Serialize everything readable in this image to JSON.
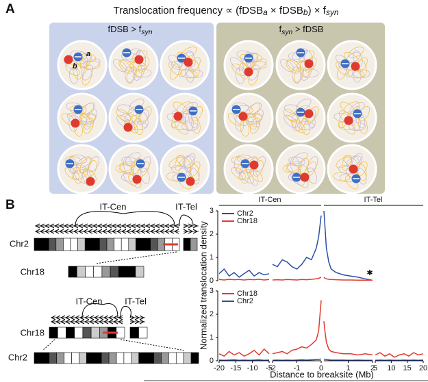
{
  "panel_a": {
    "label": "A",
    "title_parts": [
      "Translocation frequency ∝ (fDSB",
      "a",
      " × fDSB",
      "b",
      ") × f",
      "syn"
    ],
    "left_header_parts": [
      "fDSB > f",
      "syn"
    ],
    "right_header_parts": [
      "f",
      "syn",
      " > fDSB"
    ],
    "dot_labels": [
      "a",
      "b"
    ]
  },
  "panel_b": {
    "label": "B",
    "diagram_top": {
      "labels": [
        "IT-Cen",
        "IT-Tel"
      ],
      "chromosomes": [
        "Chr2",
        "Chr18"
      ]
    },
    "diagram_bottom": {
      "labels": [
        "IT-Cen",
        "IT-Tel"
      ],
      "chromosomes": [
        "Chr18",
        "Chr2"
      ]
    }
  },
  "chart_data": {
    "type": "line",
    "y_label": "Normalized translocation density",
    "x_label": "Distance to breaksite (Mb)",
    "headers": [
      "IT-Cen",
      "IT-Tel"
    ],
    "annotation": "✱",
    "ylim": [
      0,
      3
    ],
    "yticks": [
      0,
      1,
      2,
      3
    ],
    "x_segments": [
      {
        "xlim": [
          -20,
          -5
        ],
        "xticks": [
          -20,
          -15,
          -10,
          -5
        ]
      },
      {
        "xlim": [
          -2,
          0
        ],
        "xticks": [
          -2,
          -1,
          0
        ]
      },
      {
        "xlim": [
          0,
          2
        ],
        "xticks": [
          1,
          2
        ]
      },
      {
        "xlim": [
          5,
          20
        ],
        "xticks": [
          5,
          10,
          15,
          20
        ]
      }
    ],
    "panels": [
      {
        "series": [
          {
            "name": "Chr2",
            "color": "#2b4ea8"
          },
          {
            "name": "Chr18",
            "color": "#e03a2e"
          }
        ],
        "segments": [
          {
            "x": [
              -20,
              -18.5,
              -17,
              -15.5,
              -14,
              -12.5,
              -11,
              -9.5,
              -8,
              -6.5,
              -5
            ],
            "values": [
              [
                0.3,
                0.5,
                0.2,
                0.35,
                0.15,
                0.3,
                0.45,
                0.2,
                0.35,
                0.25,
                0.3
              ],
              [
                0.05,
                0.03,
                0.06,
                0.04,
                0.05,
                0.03,
                0.05,
                0.04,
                0.06,
                0.03,
                0.05
              ]
            ]
          },
          {
            "x": [
              -2,
              -1.8,
              -1.6,
              -1.4,
              -1.2,
              -1,
              -0.8,
              -0.6,
              -0.4,
              -0.2,
              -0.1,
              0
            ],
            "values": [
              [
                0.7,
                0.6,
                0.9,
                0.8,
                0.6,
                0.5,
                0.7,
                1.0,
                0.9,
                1.4,
                1.9,
                2.8
              ],
              [
                0.03,
                0.04,
                0.03,
                0.05,
                0.04,
                0.03,
                0.05,
                0.04,
                0.06,
                0.08,
                0.1,
                0.15
              ]
            ]
          },
          {
            "x": [
              0,
              0.05,
              0.1,
              0.2,
              0.3,
              0.5,
              0.8,
              1.1,
              1.4,
              1.7,
              2
            ],
            "values": [
              [
                3,
                2.2,
                1.4,
                0.8,
                0.5,
                0.35,
                0.25,
                0.2,
                0.15,
                0.08,
                0.02
              ],
              [
                0.15,
                0.1,
                0.08,
                0.06,
                0.05,
                0.04,
                0.03,
                0.03,
                0.02,
                0.02,
                0.02
              ]
            ]
          }
        ]
      },
      {
        "series": [
          {
            "name": "Chr18",
            "color": "#e03a2e"
          },
          {
            "name": "Chr2",
            "color": "#2b4ea8"
          }
        ],
        "segments": [
          {
            "x": [
              -20,
              -18.5,
              -17,
              -15.5,
              -14,
              -12.5,
              -11,
              -9.5,
              -8,
              -6.5,
              -5
            ],
            "values": [
              [
                0.3,
                0.2,
                0.4,
                0.25,
                0.35,
                0.2,
                0.3,
                0.45,
                0.25,
                0.5,
                0.3
              ],
              [
                0.03,
                0.02,
                0.03,
                0.04,
                0.02,
                0.03,
                0.02,
                0.03,
                0.04,
                0.02,
                0.03
              ]
            ]
          },
          {
            "x": [
              -2,
              -1.8,
              -1.6,
              -1.4,
              -1.2,
              -1,
              -0.8,
              -0.6,
              -0.4,
              -0.2,
              -0.1,
              0
            ],
            "values": [
              [
                0.3,
                0.35,
                0.4,
                0.3,
                0.45,
                0.5,
                0.6,
                0.55,
                0.7,
                0.9,
                1.3,
                2.6
              ],
              [
                0.02,
                0.03,
                0.02,
                0.03,
                0.02,
                0.03,
                0.04,
                0.03,
                0.04,
                0.05,
                0.06,
                0.08
              ]
            ]
          },
          {
            "x": [
              0,
              0.05,
              0.1,
              0.2,
              0.3,
              0.5,
              0.8,
              1.1,
              1.4,
              1.7,
              2
            ],
            "values": [
              [
                1.7,
                1.2,
                0.8,
                0.5,
                0.4,
                0.35,
                0.3,
                0.3,
                0.25,
                0.3,
                0.25
              ],
              [
                0.08,
                0.06,
                0.05,
                0.04,
                0.03,
                0.03,
                0.03,
                0.02,
                0.03,
                0.02,
                0.02
              ]
            ]
          },
          {
            "x": [
              5,
              6.5,
              8,
              9.5,
              11,
              12.5,
              14,
              15.5,
              17,
              18.5,
              20
            ],
            "values": [
              [
                0.25,
                0.35,
                0.2,
                0.3,
                0.15,
                0.25,
                0.3,
                0.2,
                0.35,
                0.25,
                0.3
              ],
              [
                0.02,
                0.03,
                0.02,
                0.03,
                0.02,
                0.02,
                0.03,
                0.02,
                0.03,
                0.02,
                0.03
              ]
            ]
          }
        ]
      }
    ]
  }
}
